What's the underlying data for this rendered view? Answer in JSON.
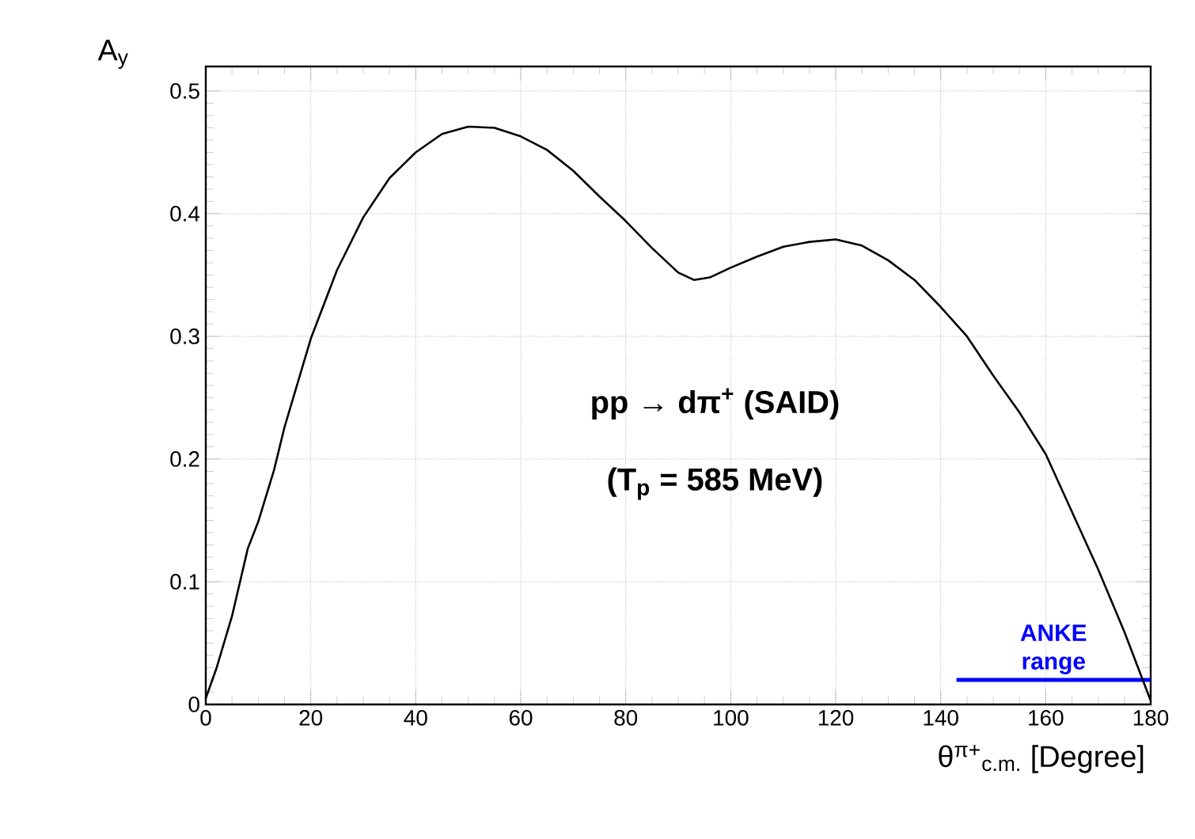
{
  "chart_data": {
    "type": "line",
    "xlabel": "θ$^{π+}$$_{c.m.}$ [Degree]",
    "ylabel": "A$_{y}$",
    "xlim": [
      0,
      180
    ],
    "ylim": [
      0,
      0.52
    ],
    "xticks": [
      0,
      20,
      40,
      60,
      80,
      100,
      120,
      140,
      160,
      180
    ],
    "yticks": [
      0,
      0.1,
      0.2,
      0.3,
      0.4,
      0.5
    ],
    "grid": true,
    "annotations": [
      "pp → dπ$^{+}$  (SAID)",
      "(T$_{p}$ = 585 MeV)"
    ],
    "series": [
      {
        "name": "ANKE range",
        "color": "#0000ff",
        "x": [
          143,
          180
        ],
        "values": [
          0.02,
          0.02
        ]
      },
      {
        "color": "#000000",
        "x": [
          0,
          2,
          5,
          8,
          10,
          13,
          15,
          20,
          25,
          30,
          35,
          40,
          45,
          50,
          55,
          60,
          65,
          70,
          75,
          80,
          85,
          90,
          93,
          96,
          100,
          105,
          110,
          115,
          120,
          125,
          130,
          135,
          140,
          145,
          150,
          155,
          160,
          165,
          170,
          175,
          180
        ],
        "values": [
          0.005,
          0.029,
          0.072,
          0.127,
          0.149,
          0.191,
          0.226,
          0.298,
          0.354,
          0.397,
          0.429,
          0.45,
          0.465,
          0.471,
          0.47,
          0.463,
          0.452,
          0.435,
          0.414,
          0.394,
          0.372,
          0.352,
          0.346,
          0.348,
          0.356,
          0.365,
          0.373,
          0.377,
          0.379,
          0.374,
          0.362,
          0.346,
          0.324,
          0.3,
          0.268,
          0.238,
          0.204,
          0.157,
          0.11,
          0.059,
          0.003
        ]
      }
    ]
  }
}
